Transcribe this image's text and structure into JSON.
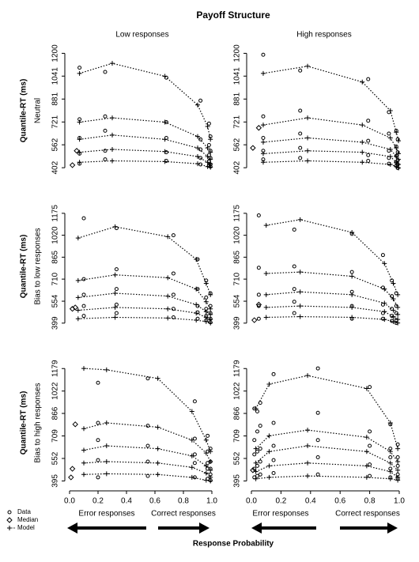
{
  "title": "Payoff Structure",
  "column_titles": [
    "Low responses",
    "High responses"
  ],
  "row_labels": [
    "Neutral",
    "Bias to low responses",
    "Bias to high responses"
  ],
  "y_label": "Quantile-RT (ms)",
  "x_label": "Response Probability",
  "legend": [
    "Data",
    "Median",
    "Model"
  ],
  "arrows": [
    "Error responses",
    "Correct responses"
  ],
  "chart_data": [
    {
      "type": "line",
      "xlim": [
        0,
        1
      ],
      "ylim": [
        370,
        1230
      ],
      "yticks": [
        402,
        562,
        721,
        881,
        1041,
        1200
      ],
      "model": {
        "x": [
          0.07,
          0.3,
          0.67,
          0.9,
          0.97,
          0.99
        ],
        "quantiles": [
          [
            440,
            450,
            445,
            430,
            410,
            405
          ],
          [
            510,
            530,
            515,
            480,
            440,
            430
          ],
          [
            600,
            630,
            600,
            540,
            480,
            460
          ],
          [
            720,
            750,
            720,
            620,
            540,
            510
          ],
          [
            1060,
            1130,
            1040,
            840,
            690,
            600
          ]
        ]
      },
      "data": {
        "x": [
          0.07,
          0.25,
          0.68,
          0.92,
          0.98,
          0.99
        ],
        "quantiles": [
          [
            430,
            460,
            450,
            425,
            415,
            410
          ],
          [
            500,
            520,
            510,
            470,
            445,
            425
          ],
          [
            610,
            660,
            610,
            530,
            490,
            470
          ],
          [
            740,
            760,
            720,
            600,
            560,
            520
          ],
          [
            1100,
            1070,
            1030,
            870,
            710,
            620
          ]
        ]
      },
      "median": {
        "x": [
          0.02,
          0.05
        ],
        "values": [
          420,
          520
        ]
      }
    },
    {
      "type": "line",
      "xlim": [
        0,
        1
      ],
      "ylim": [
        370,
        1230
      ],
      "yticks": [
        402,
        562,
        721,
        881,
        1041,
        1200
      ],
      "model": {
        "x": [
          0.08,
          0.38,
          0.75,
          0.94,
          0.98,
          0.995
        ],
        "quantiles": [
          [
            440,
            450,
            440,
            425,
            410,
            400
          ],
          [
            500,
            520,
            510,
            480,
            440,
            425
          ],
          [
            580,
            610,
            580,
            530,
            480,
            460
          ],
          [
            700,
            750,
            700,
            610,
            540,
            500
          ],
          [
            1060,
            1110,
            1000,
            800,
            650,
            590
          ]
        ]
      },
      "data": {
        "x": [
          0.08,
          0.33,
          0.79,
          0.93,
          0.98,
          0.99
        ],
        "quantiles": [
          [
            460,
            470,
            450,
            430,
            415,
            400
          ],
          [
            520,
            540,
            490,
            470,
            440,
            425
          ],
          [
            610,
            640,
            590,
            520,
            485,
            455
          ],
          [
            760,
            800,
            730,
            640,
            550,
            510
          ],
          [
            1190,
            1080,
            1020,
            790,
            660,
            600
          ]
        ]
      },
      "median": {
        "x": [
          0.01,
          0.05
        ],
        "values": [
          540,
          680
        ]
      }
    },
    {
      "type": "line",
      "xlim": [
        0,
        1
      ],
      "ylim": [
        370,
        1230
      ],
      "yticks": [
        399,
        554,
        710,
        865,
        1020,
        1175
      ],
      "model": {
        "x": [
          0.06,
          0.32,
          0.69,
          0.89,
          0.96,
          0.99
        ],
        "quantiles": [
          [
            430,
            440,
            435,
            420,
            410,
            400
          ],
          [
            490,
            510,
            500,
            470,
            440,
            425
          ],
          [
            580,
            610,
            590,
            530,
            480,
            460
          ],
          [
            700,
            740,
            720,
            640,
            550,
            500
          ],
          [
            1000,
            1080,
            1010,
            850,
            680,
            600
          ]
        ]
      },
      "data": {
        "x": [
          0.1,
          0.33,
          0.73,
          0.9,
          0.96,
          0.99
        ],
        "quantiles": [
          [
            450,
            470,
            440,
            430,
            420,
            405
          ],
          [
            520,
            530,
            500,
            475,
            450,
            430
          ],
          [
            600,
            640,
            600,
            520,
            500,
            470
          ],
          [
            710,
            780,
            750,
            640,
            580,
            520
          ],
          [
            1140,
            1070,
            1020,
            850,
            700,
            610
          ]
        ]
      },
      "median": {
        "x": [
          0.02,
          0.04
        ],
        "values": [
          500,
          510
        ]
      }
    },
    {
      "type": "line",
      "xlim": [
        0,
        1
      ],
      "ylim": [
        370,
        1230
      ],
      "yticks": [
        399,
        554,
        710,
        865,
        1020,
        1175
      ],
      "model": {
        "x": [
          0.1,
          0.33,
          0.68,
          0.9,
          0.96,
          0.99
        ],
        "quantiles": [
          [
            440,
            445,
            440,
            425,
            410,
            400
          ],
          [
            510,
            520,
            510,
            480,
            445,
            425
          ],
          [
            600,
            620,
            600,
            540,
            490,
            460
          ],
          [
            750,
            760,
            730,
            640,
            570,
            510
          ],
          [
            1090,
            1130,
            1040,
            820,
            680,
            600
          ]
        ]
      },
      "data": {
        "x": [
          0.05,
          0.29,
          0.68,
          0.89,
          0.95,
          0.98
        ],
        "quantiles": [
          [
            430,
            470,
            430,
            430,
            415,
            400
          ],
          [
            520,
            550,
            520,
            470,
            450,
            420
          ],
          [
            600,
            640,
            620,
            530,
            500,
            470
          ],
          [
            790,
            800,
            760,
            650,
            590,
            520
          ],
          [
            1160,
            1060,
            1030,
            880,
            700,
            610
          ]
        ]
      },
      "median": {
        "x": [
          0.02,
          0.05
        ],
        "values": [
          420,
          530
        ]
      }
    },
    {
      "type": "line",
      "xlim": [
        0,
        1
      ],
      "ylim": [
        370,
        1230
      ],
      "yticks": [
        395,
        552,
        709,
        866,
        1022,
        1179
      ],
      "xticks": [
        {
          "value": 0,
          "label": "0.0"
        },
        0.2,
        0.4,
        0.6,
        0.8,
        {
          "value": 1,
          "label": "1.0"
        }
      ],
      "model": {
        "x": [
          0.1,
          0.26,
          0.62,
          0.86,
          0.96,
          0.99
        ],
        "quantiles": [
          [
            440,
            445,
            440,
            420,
            400,
            395
          ],
          [
            520,
            530,
            520,
            490,
            450,
            420
          ],
          [
            610,
            640,
            620,
            570,
            500,
            470
          ],
          [
            760,
            800,
            770,
            680,
            590,
            530
          ],
          [
            1180,
            1170,
            1110,
            880,
            680,
            600
          ]
        ]
      },
      "data": {
        "x": [
          0.2,
          0.55,
          0.88,
          0.97,
          0.99
        ],
        "quantiles": [
          [
            420,
            430,
            420,
            410,
            400
          ],
          [
            540,
            530,
            520,
            480,
            440
          ],
          [
            680,
            640,
            580,
            520,
            480
          ],
          [
            800,
            780,
            690,
            600,
            530
          ],
          [
            1080,
            1110,
            950,
            710,
            620
          ]
        ]
      },
      "median": {
        "x": [
          0.01,
          0.02,
          0.04
        ],
        "values": [
          420,
          480,
          790
        ]
      }
    },
    {
      "type": "line",
      "xlim": [
        0,
        1
      ],
      "ylim": [
        370,
        1230
      ],
      "yticks": [
        395,
        552,
        709,
        866,
        1022,
        1179
      ],
      "xticks": [
        {
          "value": 0,
          "label": "0.0"
        },
        0.2,
        0.4,
        0.6,
        0.8,
        {
          "value": 1,
          "label": "1.0"
        }
      ],
      "model": {
        "x": [
          0.03,
          0.12,
          0.38,
          0.78,
          0.94,
          0.99
        ],
        "quantiles": [
          [
            410,
            420,
            430,
            420,
            410,
            400
          ],
          [
            460,
            500,
            520,
            500,
            460,
            420
          ],
          [
            520,
            600,
            640,
            600,
            520,
            470
          ],
          [
            620,
            710,
            750,
            700,
            600,
            530
          ],
          [
            900,
            1070,
            1130,
            1040,
            800,
            620
          ]
        ]
      },
      "data": {
        "x": [
          0.02,
          0.04,
          0.06,
          0.15,
          0.45,
          0.8,
          0.94,
          0.99
        ],
        "quantiles": [
          [
            420,
            430,
            440,
            450,
            440,
            430,
            420,
            410
          ],
          [
            480,
            500,
            530,
            540,
            560,
            510,
            480,
            440
          ],
          [
            580,
            600,
            620,
            640,
            680,
            640,
            560,
            500
          ],
          [
            680,
            740,
            780,
            800,
            870,
            740,
            620,
            560
          ],
          [
            900,
            880,
            940,
            1140,
            1180,
            1050,
            790,
            650
          ]
        ]
      },
      "median": {
        "x": [
          0.01
        ],
        "values": [
          470
        ]
      }
    }
  ]
}
